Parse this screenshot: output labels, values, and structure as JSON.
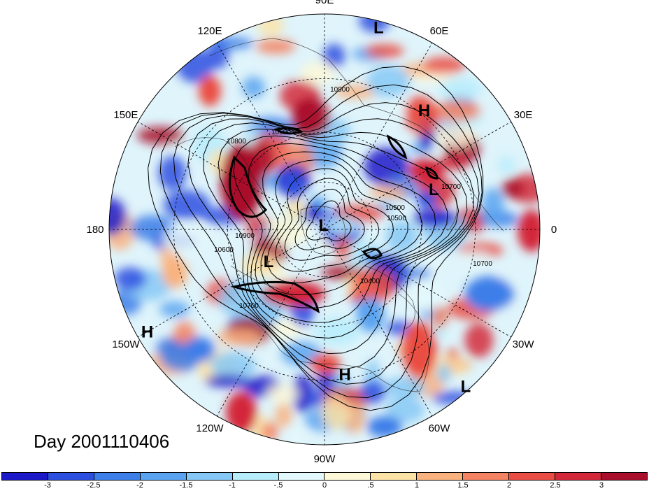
{
  "map": {
    "title": "Day 2001110406",
    "longitude_labels": [
      {
        "text": "90E",
        "lon": 90
      },
      {
        "text": "60E",
        "lon": 60
      },
      {
        "text": "30E",
        "lon": 30
      },
      {
        "text": "0",
        "lon": 0
      },
      {
        "text": "30W",
        "lon": -30
      },
      {
        "text": "60W",
        "lon": -60
      },
      {
        "text": "90W",
        "lon": -90
      },
      {
        "text": "120W",
        "lon": -120
      },
      {
        "text": "150W",
        "lon": -150
      },
      {
        "text": "180",
        "lon": 180
      },
      {
        "text": "150E",
        "lon": 150
      },
      {
        "text": "120E",
        "lon": 120
      }
    ],
    "pressure_markers": [
      {
        "text": "L",
        "lon": 75,
        "lat_frac": 0.97
      },
      {
        "text": "H",
        "lon": 50,
        "lat_frac": 0.72
      },
      {
        "text": "L",
        "lon": 20,
        "lat_frac": 0.54
      },
      {
        "text": "L",
        "lon": 100,
        "lat_frac": 0.02
      },
      {
        "text": "L",
        "lon": -150,
        "lat_frac": 0.3
      },
      {
        "text": "H",
        "lon": -150,
        "lat_frac": 0.95
      },
      {
        "text": "H",
        "lon": -82,
        "lat_frac": 0.68
      },
      {
        "text": "L",
        "lon": -48,
        "lat_frac": 0.98
      }
    ],
    "contour_labels": [
      "10900",
      "10800",
      "10600",
      "10500",
      "10700",
      "10600",
      "10700",
      "10400",
      "10500",
      "10700",
      "10900"
    ],
    "colorbar": {
      "colors": [
        "#1c19c8",
        "#2d4fe0",
        "#3d7ee8",
        "#5aa3f0",
        "#86c8f5",
        "#b7ecfb",
        "#e3f8fc",
        "#fdf8d8",
        "#fde3a6",
        "#f9b27e",
        "#f38363",
        "#ea4d43",
        "#d3283a",
        "#a90f2a"
      ],
      "tick_labels": [
        "-3",
        "-2.5",
        "-2",
        "-1.5",
        "-1",
        "-.5",
        "0",
        ".5",
        "1",
        "1.5",
        "2",
        "2.5",
        "3"
      ]
    }
  }
}
